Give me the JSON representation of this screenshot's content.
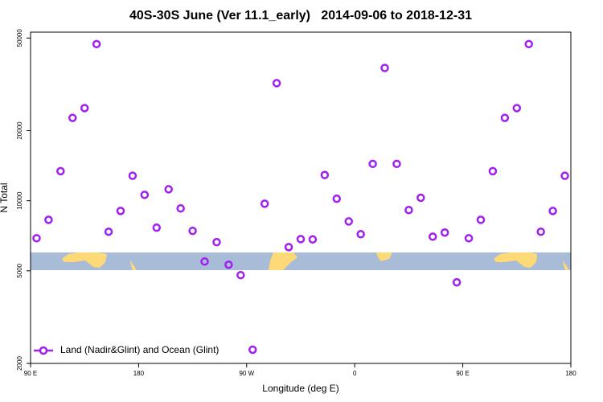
{
  "chart_data": {
    "type": "scatter",
    "title": "40S-30S June (Ver 11.1_early)   2014-09-06 to 2018-12-31",
    "xlabel": "Longitude (deg E)",
    "ylabel": "N Total",
    "log_y": true,
    "legend_loc": "lower left",
    "xlim": [
      90,
      540
    ],
    "xticks": [
      {
        "value": 90,
        "label": "90 E"
      },
      180,
      {
        "value": 270,
        "label": "90 W"
      },
      {
        "value": 360,
        "label": "0"
      },
      {
        "value": 450,
        "label": "90 E"
      },
      {
        "value": 540,
        "label": "180"
      }
    ],
    "ylim": [
      2000,
      53000
    ],
    "yticks": [
      2000,
      5000,
      10000,
      20000,
      50000
    ],
    "series": [
      {
        "name": "Land (Nadir&Glint) and Ocean (Glint)",
        "color": "#a020f0",
        "x": [
          95,
          105,
          115,
          125,
          135,
          145,
          155,
          165,
          175,
          185,
          195,
          205,
          215,
          225,
          235,
          245,
          255,
          265,
          275,
          285,
          295,
          305,
          315,
          325,
          335,
          345,
          355,
          365,
          375,
          385,
          395,
          405,
          415,
          425,
          435,
          445,
          455,
          465,
          475,
          485,
          495,
          505,
          515,
          525,
          535
        ],
        "values": [
          6900,
          8280,
          13400,
          22700,
          25000,
          47100,
          7360,
          9040,
          12800,
          10600,
          7660,
          11200,
          9270,
          7420,
          5480,
          6640,
          5310,
          4790,
          2290,
          9710,
          32000,
          6320,
          6840,
          6820,
          12900,
          10200,
          8150,
          7180,
          14400,
          37200,
          14400,
          9120,
          10300,
          7010,
          7300,
          4460,
          6900,
          8280,
          13400,
          22700,
          25000,
          47100,
          7360,
          9040,
          12800
        ]
      }
    ]
  }
}
